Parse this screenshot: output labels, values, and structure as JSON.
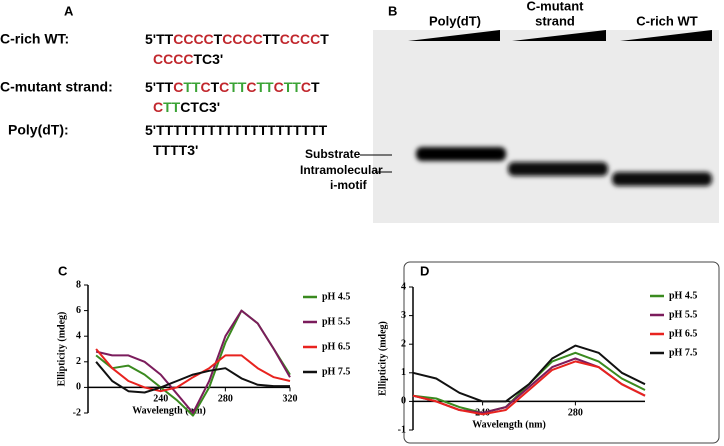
{
  "panel_a": {
    "label": "A",
    "rows": [
      {
        "name": "C-rich WT:",
        "lines": [
          [
            {
              "text": "5'TT",
              "color": "#000000"
            },
            {
              "text": "CCCC",
              "color": "#c1272d"
            },
            {
              "text": "T",
              "color": "#000000"
            },
            {
              "text": "CCCC",
              "color": "#c1272d"
            },
            {
              "text": "TT",
              "color": "#000000"
            },
            {
              "text": "CCCC",
              "color": "#c1272d"
            },
            {
              "text": "T",
              "color": "#000000"
            }
          ],
          [
            {
              "text": "CCCC",
              "color": "#c1272d"
            },
            {
              "text": "TC3'",
              "color": "#000000"
            }
          ]
        ]
      },
      {
        "name": "C-mutant strand:",
        "lines": [
          [
            {
              "text": "5'TT",
              "color": "#000000"
            },
            {
              "text": "C",
              "color": "#c1272d"
            },
            {
              "text": "TT",
              "color": "#3aa335"
            },
            {
              "text": "C",
              "color": "#c1272d"
            },
            {
              "text": "T",
              "color": "#000000"
            },
            {
              "text": "C",
              "color": "#c1272d"
            },
            {
              "text": "TT",
              "color": "#3aa335"
            },
            {
              "text": "C",
              "color": "#c1272d"
            },
            {
              "text": "TT",
              "color": "#3aa335"
            },
            {
              "text": "C",
              "color": "#c1272d"
            },
            {
              "text": "TT",
              "color": "#3aa335"
            },
            {
              "text": "C",
              "color": "#c1272d"
            },
            {
              "text": "T",
              "color": "#000000"
            }
          ],
          [
            {
              "text": "C",
              "color": "#c1272d"
            },
            {
              "text": "TT",
              "color": "#3aa335"
            },
            {
              "text": "CTC3'",
              "color": "#000000"
            }
          ]
        ]
      },
      {
        "name": "Poly(dT):",
        "lines": [
          [
            {
              "text": "5'TTTTTTTTTTTTTTTTTTTT",
              "color": "#000000"
            }
          ],
          [
            {
              "text": "TTTT3'",
              "color": "#000000"
            }
          ]
        ]
      }
    ]
  },
  "panel_b": {
    "label": "B",
    "lanes": [
      {
        "lines": [
          "Poly(dT)"
        ]
      },
      {
        "lines": [
          "C-mutant",
          "strand"
        ]
      },
      {
        "lines": [
          "C-rich WT"
        ]
      }
    ],
    "markers": [
      "Substrate",
      "Intramolecular",
      "i-motif"
    ]
  },
  "chart_data": [
    {
      "type": "line",
      "panel_label": "C",
      "x_label": "Wavelength (nm)",
      "y_label": "Ellipticity (mdeg)",
      "x": [
        200,
        210,
        220,
        230,
        240,
        250,
        260,
        270,
        280,
        290,
        300,
        310,
        320
      ],
      "xlim": [
        195,
        320
      ],
      "ylim": [
        -2,
        8
      ],
      "xticks": [
        240,
        280,
        320
      ],
      "yticks": [
        -2,
        0,
        2,
        4,
        6,
        8
      ],
      "series": [
        {
          "name": "pH 4.5",
          "color": "#3a8a1f",
          "values": [
            2.5,
            1.5,
            1.7,
            1,
            0,
            -1,
            -2.2,
            0,
            3.5,
            6,
            5,
            3,
            1
          ]
        },
        {
          "name": "pH 5.5",
          "color": "#7b1c5c",
          "values": [
            2.8,
            2.5,
            2.5,
            2,
            1,
            -0.5,
            -2,
            0.5,
            4,
            6,
            5,
            3,
            0.8
          ]
        },
        {
          "name": "pH 6.5",
          "color": "#e8231f",
          "values": [
            3,
            1.5,
            0.5,
            0,
            -0.3,
            0,
            0.8,
            1.5,
            2.5,
            2.5,
            1.5,
            0.8,
            0.5
          ]
        },
        {
          "name": "pH 7.5",
          "color": "#111111",
          "values": [
            2,
            0.5,
            -0.3,
            -0.4,
            0,
            0.5,
            1,
            1.3,
            1.5,
            0.7,
            0.2,
            0.1,
            0.1
          ]
        }
      ]
    },
    {
      "type": "line",
      "panel_label": "D",
      "x_label": "Wavelength (nm)",
      "y_label": "Ellipticity (mdeg)",
      "x": [
        210,
        220,
        230,
        240,
        250,
        260,
        270,
        280,
        290,
        300,
        310
      ],
      "xlim": [
        210,
        310
      ],
      "ylim": [
        -1,
        4
      ],
      "xticks": [
        240,
        280
      ],
      "yticks": [
        -1,
        0,
        1,
        2,
        3,
        4
      ],
      "series": [
        {
          "name": "pH 4.5",
          "color": "#3a8a1f",
          "values": [
            0.2,
            0.1,
            -0.2,
            -0.4,
            -0.2,
            0.6,
            1.4,
            1.7,
            1.4,
            0.8,
            0.4
          ]
        },
        {
          "name": "pH 5.5",
          "color": "#7b1c5c",
          "values": [
            0.2,
            0,
            -0.3,
            -0.4,
            -0.2,
            0.5,
            1.2,
            1.5,
            1.2,
            0.6,
            0.2
          ]
        },
        {
          "name": "pH 6.5",
          "color": "#e8231f",
          "values": [
            0.2,
            0,
            -0.3,
            -0.45,
            -0.3,
            0.4,
            1.1,
            1.4,
            1.2,
            0.6,
            0.2
          ]
        },
        {
          "name": "pH 7.5",
          "color": "#111111",
          "values": [
            1,
            0.8,
            0.3,
            0,
            0,
            0.6,
            1.5,
            1.95,
            1.7,
            1,
            0.6
          ]
        }
      ]
    }
  ]
}
